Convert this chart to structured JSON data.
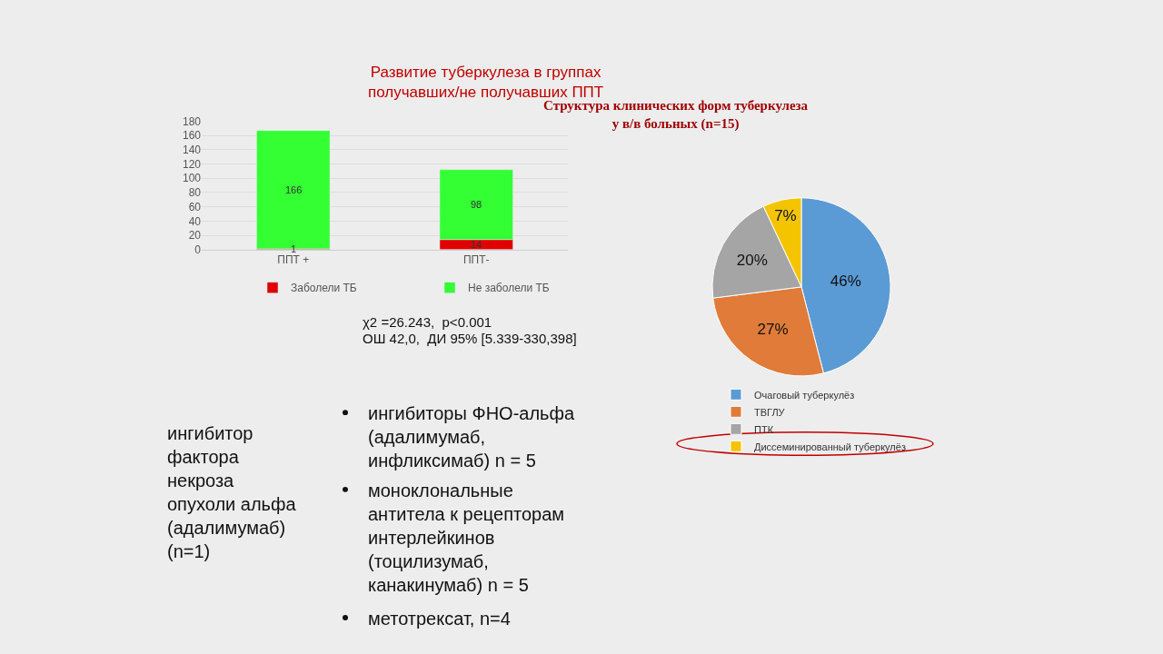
{
  "chart_data": [
    {
      "type": "bar",
      "title": "Развитие туберкулеза в группах\nполучавших/не получавших ППТ",
      "categories": [
        "ППТ +",
        "ППТ-"
      ],
      "series": [
        {
          "name": "Заболели ТБ",
          "color": "#e00000",
          "values": [
            1,
            14
          ]
        },
        {
          "name": "Не заболели ТБ",
          "color": "#33ff33",
          "values": [
            166,
            98
          ]
        }
      ],
      "stacked": true,
      "ylim": [
        0,
        180
      ],
      "yticks": [
        0,
        20,
        40,
        60,
        80,
        100,
        120,
        140,
        160,
        180
      ],
      "grid": "y",
      "legend": "bottom",
      "data_labels": true,
      "annotations": [
        "χ2 =26.243,  p<0.001",
        "ОШ 42,0,  ДИ 95% [5.339-330,398]"
      ]
    },
    {
      "type": "pie",
      "title": "Структура клинических форм туберкулеза\nу в/в больных (n=15)",
      "categories": [
        "Очаговый туберкулёз",
        "ТВГЛУ",
        "ПТК",
        "Диссеминированный туберкулёз"
      ],
      "values": [
        46,
        27,
        20,
        7
      ],
      "colors": [
        "#5b9bd5",
        "#e07b39",
        "#a5a5a5",
        "#f5c400"
      ],
      "value_labels": [
        "46%",
        "27%",
        "20%",
        "7%"
      ],
      "legend": "bottom"
    },
    {
      "type": "other",
      "annotations": [
        "ингибитор\nфактора\nнекроза\nопухоли альфа\n(адалимумаб)\n(n=1)",
        "ингибиторы ФНО-альфа\n(адалимумаб,\nинфликсимаб) n = 5",
        "моноклональные\nантитела к рецепторам\nинтерлейкинов\n(тоцилизумаб,\nканакинумаб) n = 5",
        "метотрексат, n=4"
      ]
    }
  ]
}
